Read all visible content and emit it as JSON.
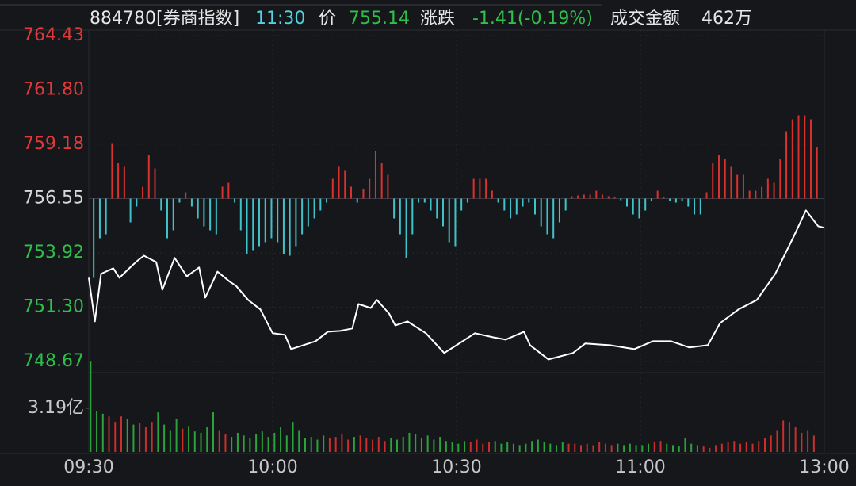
{
  "chart_data": {
    "type": "line",
    "header": {
      "code": "884780[券商指数]",
      "time": "11:30",
      "price_label": "价",
      "price": "755.14",
      "change_label": "涨跌",
      "change": "-1.41(-0.19%)",
      "amount_label": "成交金额",
      "amount": "462万"
    },
    "grid": true,
    "xlim": [
      0,
      120
    ],
    "xticks": [
      {
        "value": 0,
        "label": "09:30"
      },
      {
        "value": 30,
        "label": "10:00"
      },
      {
        "value": 60,
        "label": "10:30"
      },
      {
        "value": 90,
        "label": "11:00"
      },
      {
        "value": 120,
        "label": "13:00"
      }
    ],
    "ylim": [
      748.67,
      764.43
    ],
    "yticks": [
      764.43,
      {
        "value": 761.8,
        "label": "761.80"
      },
      759.18,
      756.55,
      753.92,
      {
        "value": 751.3,
        "label": "751.30"
      },
      748.67
    ],
    "ytick_colors": [
      "#e0393a",
      "#e0393a",
      "#e0393a",
      "#d8d8d8",
      "#2fbf4a",
      "#2fbf4a",
      "#2fbf4a"
    ],
    "price": {
      "color": "#ffffff",
      "x": [
        0,
        1,
        2,
        4,
        5,
        7,
        8,
        9,
        11,
        12,
        14,
        16,
        18,
        19,
        21,
        23,
        24,
        26,
        28,
        30,
        32,
        33,
        35,
        37,
        39,
        41,
        43,
        44,
        46,
        47,
        49,
        50,
        52,
        55,
        58,
        60,
        63,
        66,
        68,
        71,
        72,
        75,
        79,
        81,
        85,
        89,
        92,
        95,
        98,
        101,
        103,
        106,
        109,
        112,
        115,
        117,
        119,
        120
      ],
      "values": [
        752.72,
        750.61,
        752.91,
        753.18,
        752.72,
        753.29,
        753.56,
        753.79,
        753.48,
        752.14,
        753.68,
        752.79,
        753.22,
        751.76,
        753.02,
        752.53,
        752.34,
        751.65,
        751.19,
        750.04,
        749.96,
        749.27,
        749.46,
        749.65,
        750.11,
        750.15,
        750.27,
        751.45,
        751.26,
        751.65,
        750.99,
        750.42,
        750.61,
        750.04,
        749.08,
        749.46,
        750.04,
        749.84,
        749.73,
        750.11,
        749.46,
        748.77,
        749.08,
        749.54,
        749.46,
        749.27,
        749.65,
        749.65,
        749.35,
        749.46,
        750.53,
        751.19,
        751.65,
        752.91,
        754.71,
        755.98,
        755.21,
        755.14
      ]
    },
    "strength": {
      "colors": {
        "up": "#d9312e",
        "down": "#3fc3ca"
      },
      "values": [
        -100,
        -50,
        -45,
        70,
        45,
        40,
        -30,
        -10,
        15,
        55,
        38,
        -15,
        -50,
        -40,
        -5,
        8,
        -10,
        -25,
        -35,
        -40,
        -45,
        15,
        20,
        -5,
        -40,
        -70,
        -65,
        -60,
        -55,
        -50,
        -55,
        -70,
        -72,
        -60,
        -45,
        -35,
        -25,
        -15,
        -5,
        25,
        40,
        35,
        15,
        -5,
        12,
        25,
        60,
        45,
        30,
        -25,
        -45,
        -75,
        -45,
        -5,
        -5,
        -15,
        -25,
        -35,
        -55,
        -60,
        -15,
        -5,
        25,
        25,
        25,
        10,
        -5,
        -15,
        -25,
        -20,
        -10,
        -5,
        -20,
        -35,
        -45,
        -50,
        -30,
        -15,
        3,
        4,
        5,
        5,
        10,
        5,
        3,
        2,
        -2,
        -10,
        -20,
        -25,
        -15,
        -3,
        10,
        2,
        -3,
        -5,
        -3,
        -10,
        -20,
        -20,
        8,
        45,
        55,
        50,
        40,
        30,
        30,
        10,
        10,
        15,
        25,
        20,
        50,
        85,
        100,
        105,
        105,
        100,
        65
      ]
    },
    "volume": {
      "ylim": [
        0,
        6.8
      ],
      "yticks": [
        {
          "value": 3.19,
          "label": "3.19亿"
        }
      ],
      "colors": {
        "up": "#c92f2c",
        "down": "#2aa33a"
      },
      "directions": [
        "down",
        "down",
        "down",
        "up",
        "up",
        "up",
        "down",
        "down",
        "up",
        "up",
        "up",
        "down",
        "down",
        "down",
        "down",
        "up",
        "down",
        "down",
        "down",
        "down",
        "down",
        "up",
        "up",
        "down",
        "down",
        "down",
        "down",
        "down",
        "down",
        "down",
        "down",
        "down",
        "down",
        "down",
        "down",
        "down",
        "down",
        "down",
        "down",
        "up",
        "up",
        "up",
        "up",
        "down",
        "up",
        "up",
        "up",
        "up",
        "up",
        "down",
        "down",
        "down",
        "down",
        "down",
        "down",
        "down",
        "down",
        "down",
        "down",
        "down",
        "down",
        "down",
        "up",
        "up",
        "up",
        "up",
        "down",
        "down",
        "down",
        "down",
        "down",
        "down",
        "down",
        "down",
        "down",
        "down",
        "down",
        "down",
        "up",
        "up",
        "up",
        "up",
        "up",
        "up",
        "up",
        "up",
        "down",
        "down",
        "down",
        "down",
        "down",
        "down",
        "up",
        "up",
        "down",
        "down",
        "down",
        "down",
        "down",
        "down",
        "up",
        "up",
        "up",
        "up",
        "up",
        "up",
        "up",
        "up",
        "up",
        "up",
        "up",
        "up",
        "up",
        "up",
        "up",
        "up",
        "up",
        "up",
        "up"
      ],
      "values": [
        6.67,
        3.0,
        2.8,
        2.6,
        2.2,
        2.6,
        2.4,
        2.0,
        2.1,
        1.8,
        2.2,
        2.9,
        2.0,
        1.6,
        2.4,
        1.7,
        1.9,
        1.5,
        1.4,
        1.8,
        2.9,
        1.6,
        1.3,
        1.1,
        1.4,
        1.2,
        1.0,
        1.3,
        1.5,
        1.1,
        1.4,
        1.8,
        1.2,
        2.2,
        1.6,
        1.0,
        1.1,
        0.9,
        1.2,
        1.0,
        1.1,
        1.3,
        0.9,
        1.1,
        1.2,
        1.0,
        0.9,
        1.1,
        0.8,
        1.0,
        0.9,
        1.1,
        1.4,
        1.3,
        1.0,
        1.2,
        0.9,
        1.1,
        0.8,
        0.7,
        0.6,
        0.8,
        0.7,
        0.9,
        0.6,
        0.7,
        0.8,
        0.6,
        0.7,
        0.6,
        0.5,
        0.6,
        0.8,
        0.9,
        0.7,
        0.6,
        0.5,
        0.7,
        0.6,
        0.6,
        0.5,
        0.6,
        0.5,
        0.7,
        0.6,
        0.5,
        0.6,
        0.5,
        0.6,
        0.5,
        0.5,
        0.6,
        0.7,
        0.8,
        0.6,
        0.5,
        0.4,
        1.0,
        0.6,
        0.5,
        0.4,
        0.3,
        0.5,
        0.6,
        0.7,
        0.8,
        0.6,
        0.7,
        0.6,
        0.8,
        1.0,
        1.2,
        1.6,
        2.3,
        2.2,
        1.8,
        1.4,
        1.6,
        1.2
      ]
    }
  }
}
